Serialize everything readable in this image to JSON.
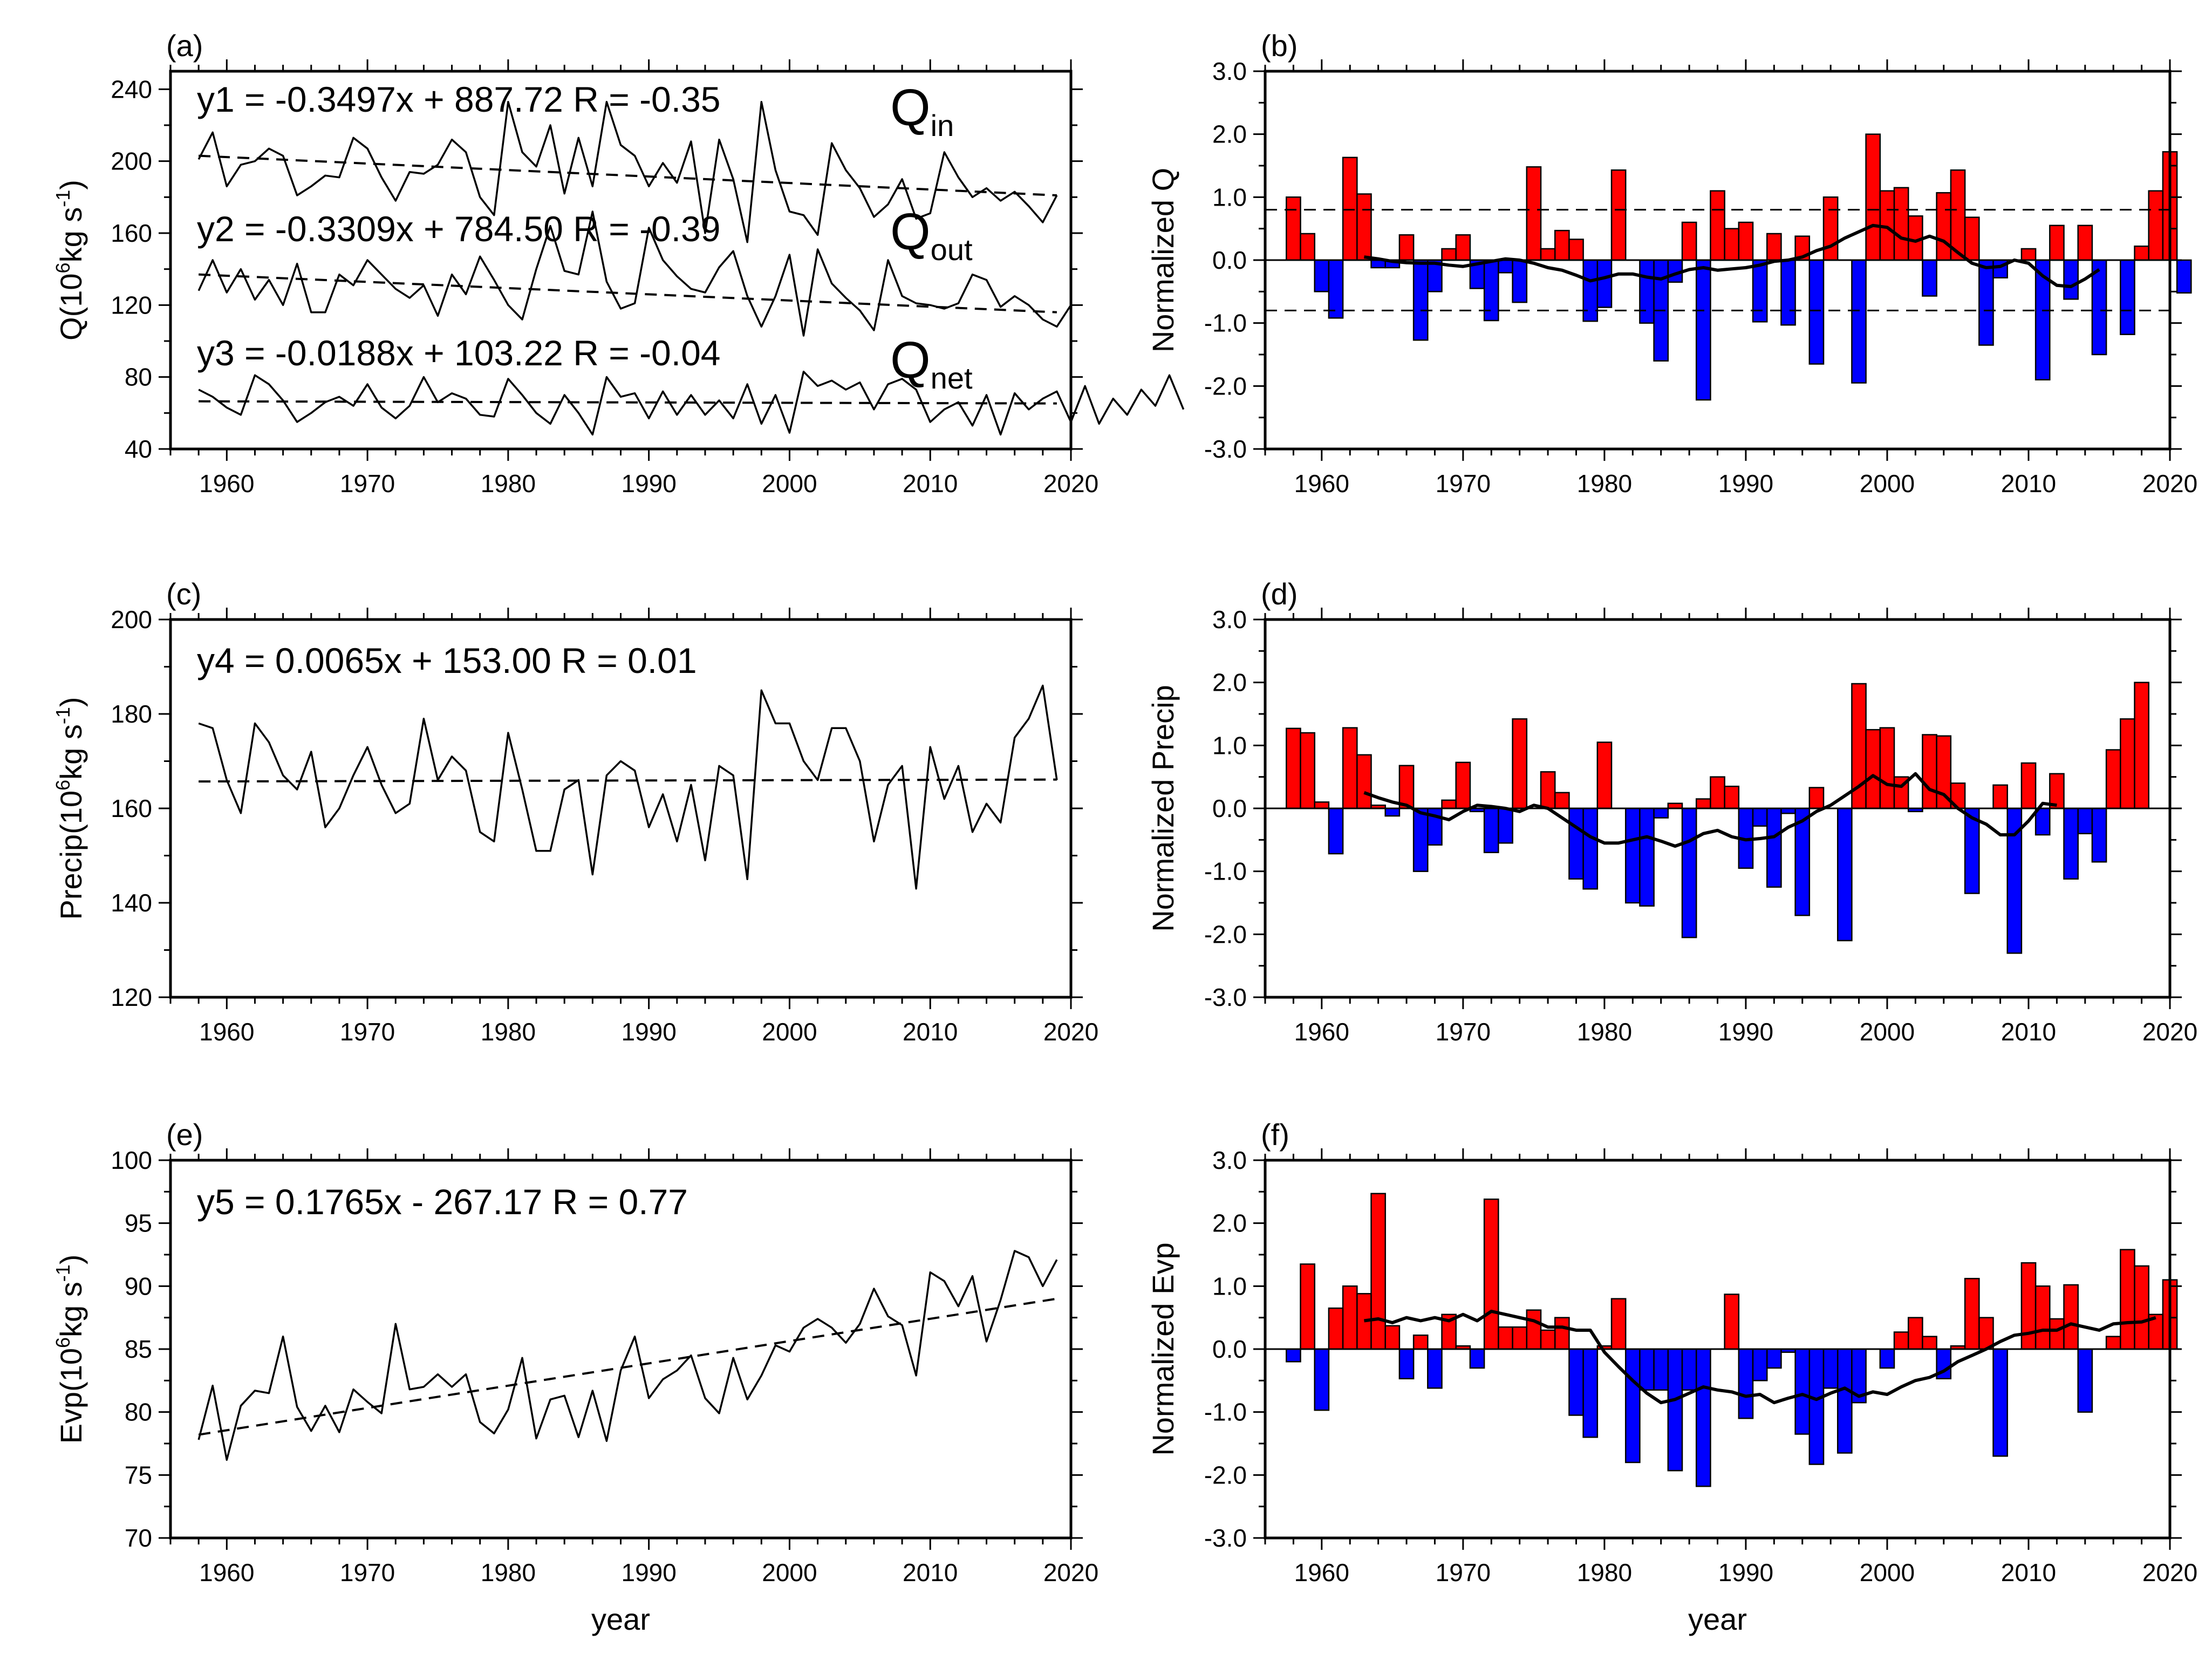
{
  "chart_data": [
    {
      "panel": "a",
      "type": "line",
      "label": "(a)",
      "ylabel": "Q(10^6kg s^-1)",
      "ylabel_parts": {
        "base": "Q(10",
        "exp1": "6",
        "mid": "kg s",
        "exp2": "-1",
        "end": ")"
      },
      "xlabel": "",
      "xlim": [
        1956,
        2020
      ],
      "ylim": [
        40,
        250
      ],
      "yticks": [
        40,
        80,
        120,
        160,
        200,
        240
      ],
      "ytick_labels": [
        "40",
        "80",
        "120",
        "160",
        "200",
        "240"
      ],
      "xticks": [
        1960,
        1970,
        1980,
        1990,
        2000,
        2010,
        2020
      ],
      "xtick_labels": [
        "1960",
        "1970",
        "1980",
        "1990",
        "2000",
        "2010",
        "2020"
      ],
      "x_start": 1958,
      "series": [
        {
          "name": "Qin",
          "label_base": "Q",
          "label_sub": "in",
          "values": [
            201,
            216,
            186,
            198,
            200,
            207,
            203,
            181,
            186,
            192,
            191,
            213,
            207,
            191,
            178,
            194,
            193,
            198,
            212,
            205,
            180,
            170,
            233,
            205,
            197,
            220,
            182,
            213,
            186,
            233,
            209,
            203,
            186,
            199,
            188,
            211,
            160,
            212,
            190,
            155,
            233,
            195,
            172,
            170,
            159,
            210,
            195,
            185,
            169,
            176,
            190,
            168,
            171,
            205,
            191,
            180,
            185,
            178,
            183,
            175,
            166,
            181
          ]
        },
        {
          "name": "Qout",
          "label_base": "Q",
          "label_sub": "out",
          "values": [
            128,
            145,
            127,
            140,
            123,
            134,
            120,
            143,
            116,
            116,
            137,
            131,
            145,
            137,
            129,
            124,
            131,
            114,
            137,
            126,
            147,
            134,
            120,
            112,
            140,
            164,
            139,
            137,
            172,
            133,
            118,
            121,
            163,
            145,
            136,
            129,
            127,
            141,
            150,
            125,
            108,
            125,
            148,
            103,
            151,
            132,
            124,
            117,
            106,
            145,
            125,
            121,
            120,
            118,
            121,
            137,
            134,
            119,
            125,
            120,
            112,
            108,
            120
          ]
        },
        {
          "name": "Qnet",
          "label_base": "Q",
          "label_sub": "net",
          "values": [
            73,
            69,
            63,
            59,
            81,
            76,
            67,
            55,
            60,
            66,
            69,
            64,
            76,
            63,
            57,
            64,
            80,
            66,
            71,
            68,
            59,
            58,
            79,
            70,
            60,
            54,
            70,
            60,
            48,
            80,
            69,
            71,
            57,
            72,
            59,
            70,
            59,
            67,
            57,
            76,
            54,
            70,
            49,
            83,
            75,
            78,
            73,
            77,
            62,
            76,
            79,
            73,
            55,
            62,
            66,
            53,
            70,
            48,
            71,
            62,
            68,
            72,
            55,
            75,
            54,
            68,
            59,
            73,
            64,
            81,
            62
          ]
        },
        {
          "name": "trend-Qin",
          "equation": "y1 = -0.3497x + 887.72  R = -0.35",
          "start": [
            1958,
            203
          ],
          "end": [
            2019,
            181
          ]
        },
        {
          "name": "trend-Qout",
          "equation": "y2 = -0.3309x + 784.50  R = -0.39",
          "start": [
            1958,
            137
          ],
          "end": [
            2019,
            116
          ]
        },
        {
          "name": "trend-Qnet",
          "equation": "y3 = -0.0188x + 103.22  R = -0.04",
          "start": [
            1958,
            66.5
          ],
          "end": [
            2019,
            65.3
          ]
        }
      ]
    },
    {
      "panel": "b",
      "type": "bar",
      "label": "(b)",
      "ylabel": "Normalized Q",
      "xlabel": "",
      "xlim": [
        1956,
        2020
      ],
      "ylim": [
        -3,
        3
      ],
      "yticks": [
        -3,
        -2,
        -1,
        0,
        1,
        2,
        3
      ],
      "ytick_labels": [
        "-3.0",
        "-2.0",
        "-1.0",
        "0.0",
        "1.0",
        "2.0",
        "3.0"
      ],
      "xticks": [
        1960,
        1970,
        1980,
        1990,
        2000,
        2010,
        2020
      ],
      "xtick_labels": [
        "1960",
        "1970",
        "1980",
        "1990",
        "2000",
        "2010",
        "2020"
      ],
      "x_start": 1958,
      "values": [
        1.0,
        0.42,
        -0.5,
        -0.92,
        1.63,
        1.05,
        -0.12,
        -0.12,
        0.4,
        -1.27,
        -0.5,
        0.18,
        0.4,
        -0.45,
        -0.96,
        -0.2,
        -0.67,
        1.48,
        0.18,
        0.47,
        0.33,
        -0.97,
        -0.75,
        1.43,
        0.0,
        -1.0,
        -1.6,
        -0.35,
        0.6,
        -2.22,
        1.1,
        0.5,
        0.6,
        -0.98,
        0.42,
        -1.03,
        0.38,
        -1.65,
        1.0,
        0.0,
        -1.95,
        2.0,
        1.1,
        1.15,
        0.7,
        -0.57,
        1.07,
        1.43,
        0.68,
        -1.35,
        -0.28,
        0.0,
        0.18,
        -1.9,
        0.55,
        -0.62,
        0.55,
        -1.5,
        0.0,
        -1.18,
        0.22,
        1.1,
        1.72,
        -0.52
      ],
      "ref_lines": [
        0.8,
        -0.8
      ],
      "smooth_start": 1963,
      "smooth": [
        0.05,
        0.02,
        -0.02,
        -0.04,
        -0.05,
        -0.05,
        -0.08,
        -0.1,
        -0.06,
        -0.02,
        0.02,
        0.0,
        -0.05,
        -0.12,
        -0.16,
        -0.24,
        -0.33,
        -0.28,
        -0.22,
        -0.22,
        -0.27,
        -0.3,
        -0.22,
        -0.15,
        -0.12,
        -0.16,
        -0.14,
        -0.12,
        -0.08,
        -0.02,
        0.0,
        0.05,
        0.15,
        0.22,
        0.35,
        0.45,
        0.55,
        0.52,
        0.35,
        0.3,
        0.38,
        0.3,
        0.12,
        -0.05,
        -0.12,
        -0.1,
        0.0,
        -0.05,
        -0.25,
        -0.4,
        -0.42,
        -0.3,
        -0.15
      ],
      "series": []
    },
    {
      "panel": "c",
      "type": "line",
      "label": "(c)",
      "ylabel": "Precip(10^6kg s^-1)",
      "ylabel_parts": {
        "base": "Precip(10",
        "exp1": "6",
        "mid": "kg s",
        "exp2": "-1",
        "end": ")"
      },
      "xlabel": "",
      "xlim": [
        1956,
        2020
      ],
      "ylim": [
        120,
        200
      ],
      "yticks": [
        120,
        140,
        160,
        180,
        200
      ],
      "ytick_labels": [
        "120",
        "140",
        "160",
        "180",
        "200"
      ],
      "xticks": [
        1960,
        1970,
        1980,
        1990,
        2000,
        2010,
        2020
      ],
      "xtick_labels": [
        "1960",
        "1970",
        "1980",
        "1990",
        "2000",
        "2010",
        "2020"
      ],
      "x_start": 1958,
      "series": [
        {
          "name": "Precip",
          "values": [
            178,
            177,
            166,
            159,
            178,
            174,
            167,
            164,
            172,
            156,
            160,
            167,
            173,
            165,
            159,
            161,
            179,
            166,
            171,
            168,
            155,
            153,
            176,
            164,
            151,
            151,
            164,
            166,
            146,
            167,
            170,
            168,
            156,
            163,
            153,
            165,
            149,
            169,
            167,
            145,
            185,
            178,
            178,
            170,
            166,
            177,
            177,
            170,
            153,
            165,
            169,
            143,
            173,
            162,
            169,
            155,
            161,
            157,
            175,
            179,
            186,
            166
          ]
        },
        {
          "name": "trend-Precip",
          "equation": "y4 = 0.0065x + 153.00  R = 0.01",
          "start": [
            1958,
            165.7
          ],
          "end": [
            2019,
            166.1
          ]
        }
      ]
    },
    {
      "panel": "d",
      "type": "bar",
      "label": "(d)",
      "ylabel": "Normalized Precip",
      "xlabel": "",
      "xlim": [
        1956,
        2020
      ],
      "ylim": [
        -3,
        3
      ],
      "yticks": [
        -3,
        -2,
        -1,
        0,
        1,
        2,
        3
      ],
      "ytick_labels": [
        "-3.0",
        "-2.0",
        "-1.0",
        "0.0",
        "1.0",
        "2.0",
        "3.0"
      ],
      "xticks": [
        1960,
        1970,
        1980,
        1990,
        2000,
        2010,
        2020
      ],
      "xtick_labels": [
        "1960",
        "1970",
        "1980",
        "1990",
        "2000",
        "2010",
        "2020"
      ],
      "x_start": 1958,
      "values": [
        1.27,
        1.2,
        0.1,
        -0.72,
        1.28,
        0.85,
        0.05,
        -0.12,
        0.68,
        -1.0,
        -0.58,
        0.13,
        0.73,
        -0.05,
        -0.7,
        -0.55,
        1.42,
        0.0,
        0.58,
        0.25,
        -1.12,
        -1.28,
        1.05,
        0.0,
        -1.5,
        -1.55,
        -0.15,
        0.08,
        -2.05,
        0.15,
        0.5,
        0.35,
        -0.95,
        -0.28,
        -1.25,
        -0.08,
        -1.7,
        0.33,
        0.0,
        -2.1,
        1.98,
        1.25,
        1.28,
        0.5,
        -0.05,
        1.17,
        1.15,
        0.4,
        -1.35,
        0.0,
        0.37,
        -2.3,
        0.72,
        -0.42,
        0.55,
        -1.12,
        -0.4,
        -0.85,
        0.93,
        1.42,
        2.0
      ],
      "smooth_start": 1963,
      "smooth": [
        0.25,
        0.17,
        0.1,
        0.05,
        -0.07,
        -0.12,
        -0.18,
        -0.05,
        0.05,
        0.03,
        0.0,
        -0.05,
        0.05,
        0.0,
        -0.15,
        -0.3,
        -0.45,
        -0.55,
        -0.55,
        -0.5,
        -0.45,
        -0.52,
        -0.6,
        -0.52,
        -0.4,
        -0.35,
        -0.45,
        -0.5,
        -0.48,
        -0.45,
        -0.3,
        -0.2,
        -0.05,
        0.05,
        0.2,
        0.35,
        0.52,
        0.38,
        0.35,
        0.55,
        0.3,
        0.22,
        0.0,
        -0.15,
        -0.25,
        -0.42,
        -0.42,
        -0.2,
        0.08,
        0.05
      ]
    },
    {
      "panel": "e",
      "type": "line",
      "label": "(e)",
      "ylabel": "Evp(10^6kg s^-1)",
      "ylabel_parts": {
        "base": "Evp(10",
        "exp1": "6",
        "mid": "kg s",
        "exp2": "-1",
        "end": ")"
      },
      "xlabel": "year",
      "xlim": [
        1956,
        2020
      ],
      "ylim": [
        70,
        100
      ],
      "yticks": [
        70,
        75,
        80,
        85,
        90,
        95,
        100
      ],
      "ytick_labels": [
        "70",
        "75",
        "80",
        "85",
        "90",
        "95",
        "100"
      ],
      "xticks": [
        1960,
        1970,
        1980,
        1990,
        2000,
        2010,
        2020
      ],
      "xtick_labels": [
        "1960",
        "1970",
        "1980",
        "1990",
        "2000",
        "2010",
        "2020"
      ],
      "x_start": 1958,
      "series": [
        {
          "name": "Evp",
          "values": [
            77.8,
            82.1,
            76.2,
            80.5,
            81.7,
            81.5,
            86.0,
            80.4,
            78.5,
            80.5,
            78.4,
            81.8,
            80.8,
            79.9,
            87.0,
            81.8,
            82.0,
            83.0,
            82.0,
            83.0,
            79.2,
            78.3,
            80.2,
            84.3,
            77.9,
            81.0,
            81.3,
            78.0,
            81.7,
            77.7,
            83.3,
            86.0,
            81.1,
            82.6,
            83.3,
            84.5,
            81.1,
            79.9,
            84.3,
            81.0,
            82.9,
            85.3,
            84.8,
            86.7,
            87.4,
            86.7,
            85.5,
            87.0,
            89.8,
            87.6,
            86.9,
            82.9,
            91.1,
            90.4,
            88.4,
            90.8,
            85.6,
            88.9,
            92.8,
            92.3,
            90.0,
            92.1
          ]
        },
        {
          "name": "trend-Evp",
          "equation": "y5 = 0.1765x - 267.17  R = 0.77",
          "start": [
            1958,
            78.2
          ],
          "end": [
            2019,
            89.0
          ]
        }
      ]
    },
    {
      "panel": "f",
      "type": "bar",
      "label": "(f)",
      "ylabel": "Normalized Evp",
      "xlabel": "year",
      "xlim": [
        1956,
        2020
      ],
      "ylim": [
        -3,
        3
      ],
      "yticks": [
        -3,
        -2,
        -1,
        0,
        1,
        2,
        3
      ],
      "ytick_labels": [
        "-3.0",
        "-2.0",
        "-1.0",
        "0.0",
        "1.0",
        "2.0",
        "3.0"
      ],
      "xticks": [
        1960,
        1970,
        1980,
        1990,
        2000,
        2010,
        2020
      ],
      "xtick_labels": [
        "1960",
        "1970",
        "1980",
        "1990",
        "2000",
        "2010",
        "2020"
      ],
      "x_start": 1958,
      "values": [
        -0.2,
        1.35,
        -0.97,
        0.65,
        1.0,
        0.88,
        2.47,
        0.37,
        -0.47,
        0.22,
        -0.62,
        0.55,
        0.05,
        -0.3,
        2.38,
        0.35,
        0.35,
        0.62,
        0.3,
        0.5,
        -1.05,
        -1.4,
        0.05,
        0.8,
        -1.8,
        -0.65,
        -0.65,
        -1.93,
        -0.65,
        -2.18,
        0.0,
        0.87,
        -1.1,
        -0.5,
        -0.3,
        -0.05,
        -1.35,
        -1.83,
        -0.62,
        -1.65,
        -0.85,
        0.0,
        -0.3,
        0.27,
        0.5,
        0.2,
        -0.47,
        0.05,
        1.12,
        0.5,
        -1.7,
        0.0,
        1.37,
        1.0,
        0.48,
        1.02,
        -1.0,
        0.0,
        0.2,
        1.58,
        1.32,
        0.55,
        1.1
      ],
      "smooth_start": 1963,
      "smooth": [
        0.45,
        0.48,
        0.42,
        0.5,
        0.45,
        0.5,
        0.45,
        0.55,
        0.45,
        0.6,
        0.55,
        0.5,
        0.45,
        0.35,
        0.35,
        0.3,
        0.3,
        -0.05,
        -0.28,
        -0.5,
        -0.7,
        -0.85,
        -0.8,
        -0.7,
        -0.6,
        -0.65,
        -0.68,
        -0.75,
        -0.72,
        -0.85,
        -0.78,
        -0.72,
        -0.8,
        -0.7,
        -0.62,
        -0.75,
        -0.68,
        -0.72,
        -0.6,
        -0.5,
        -0.45,
        -0.35,
        -0.2,
        -0.1,
        0.0,
        0.12,
        0.22,
        0.25,
        0.3,
        0.3,
        0.4,
        0.35,
        0.3,
        0.4,
        0.42,
        0.43,
        0.5
      ]
    }
  ]
}
